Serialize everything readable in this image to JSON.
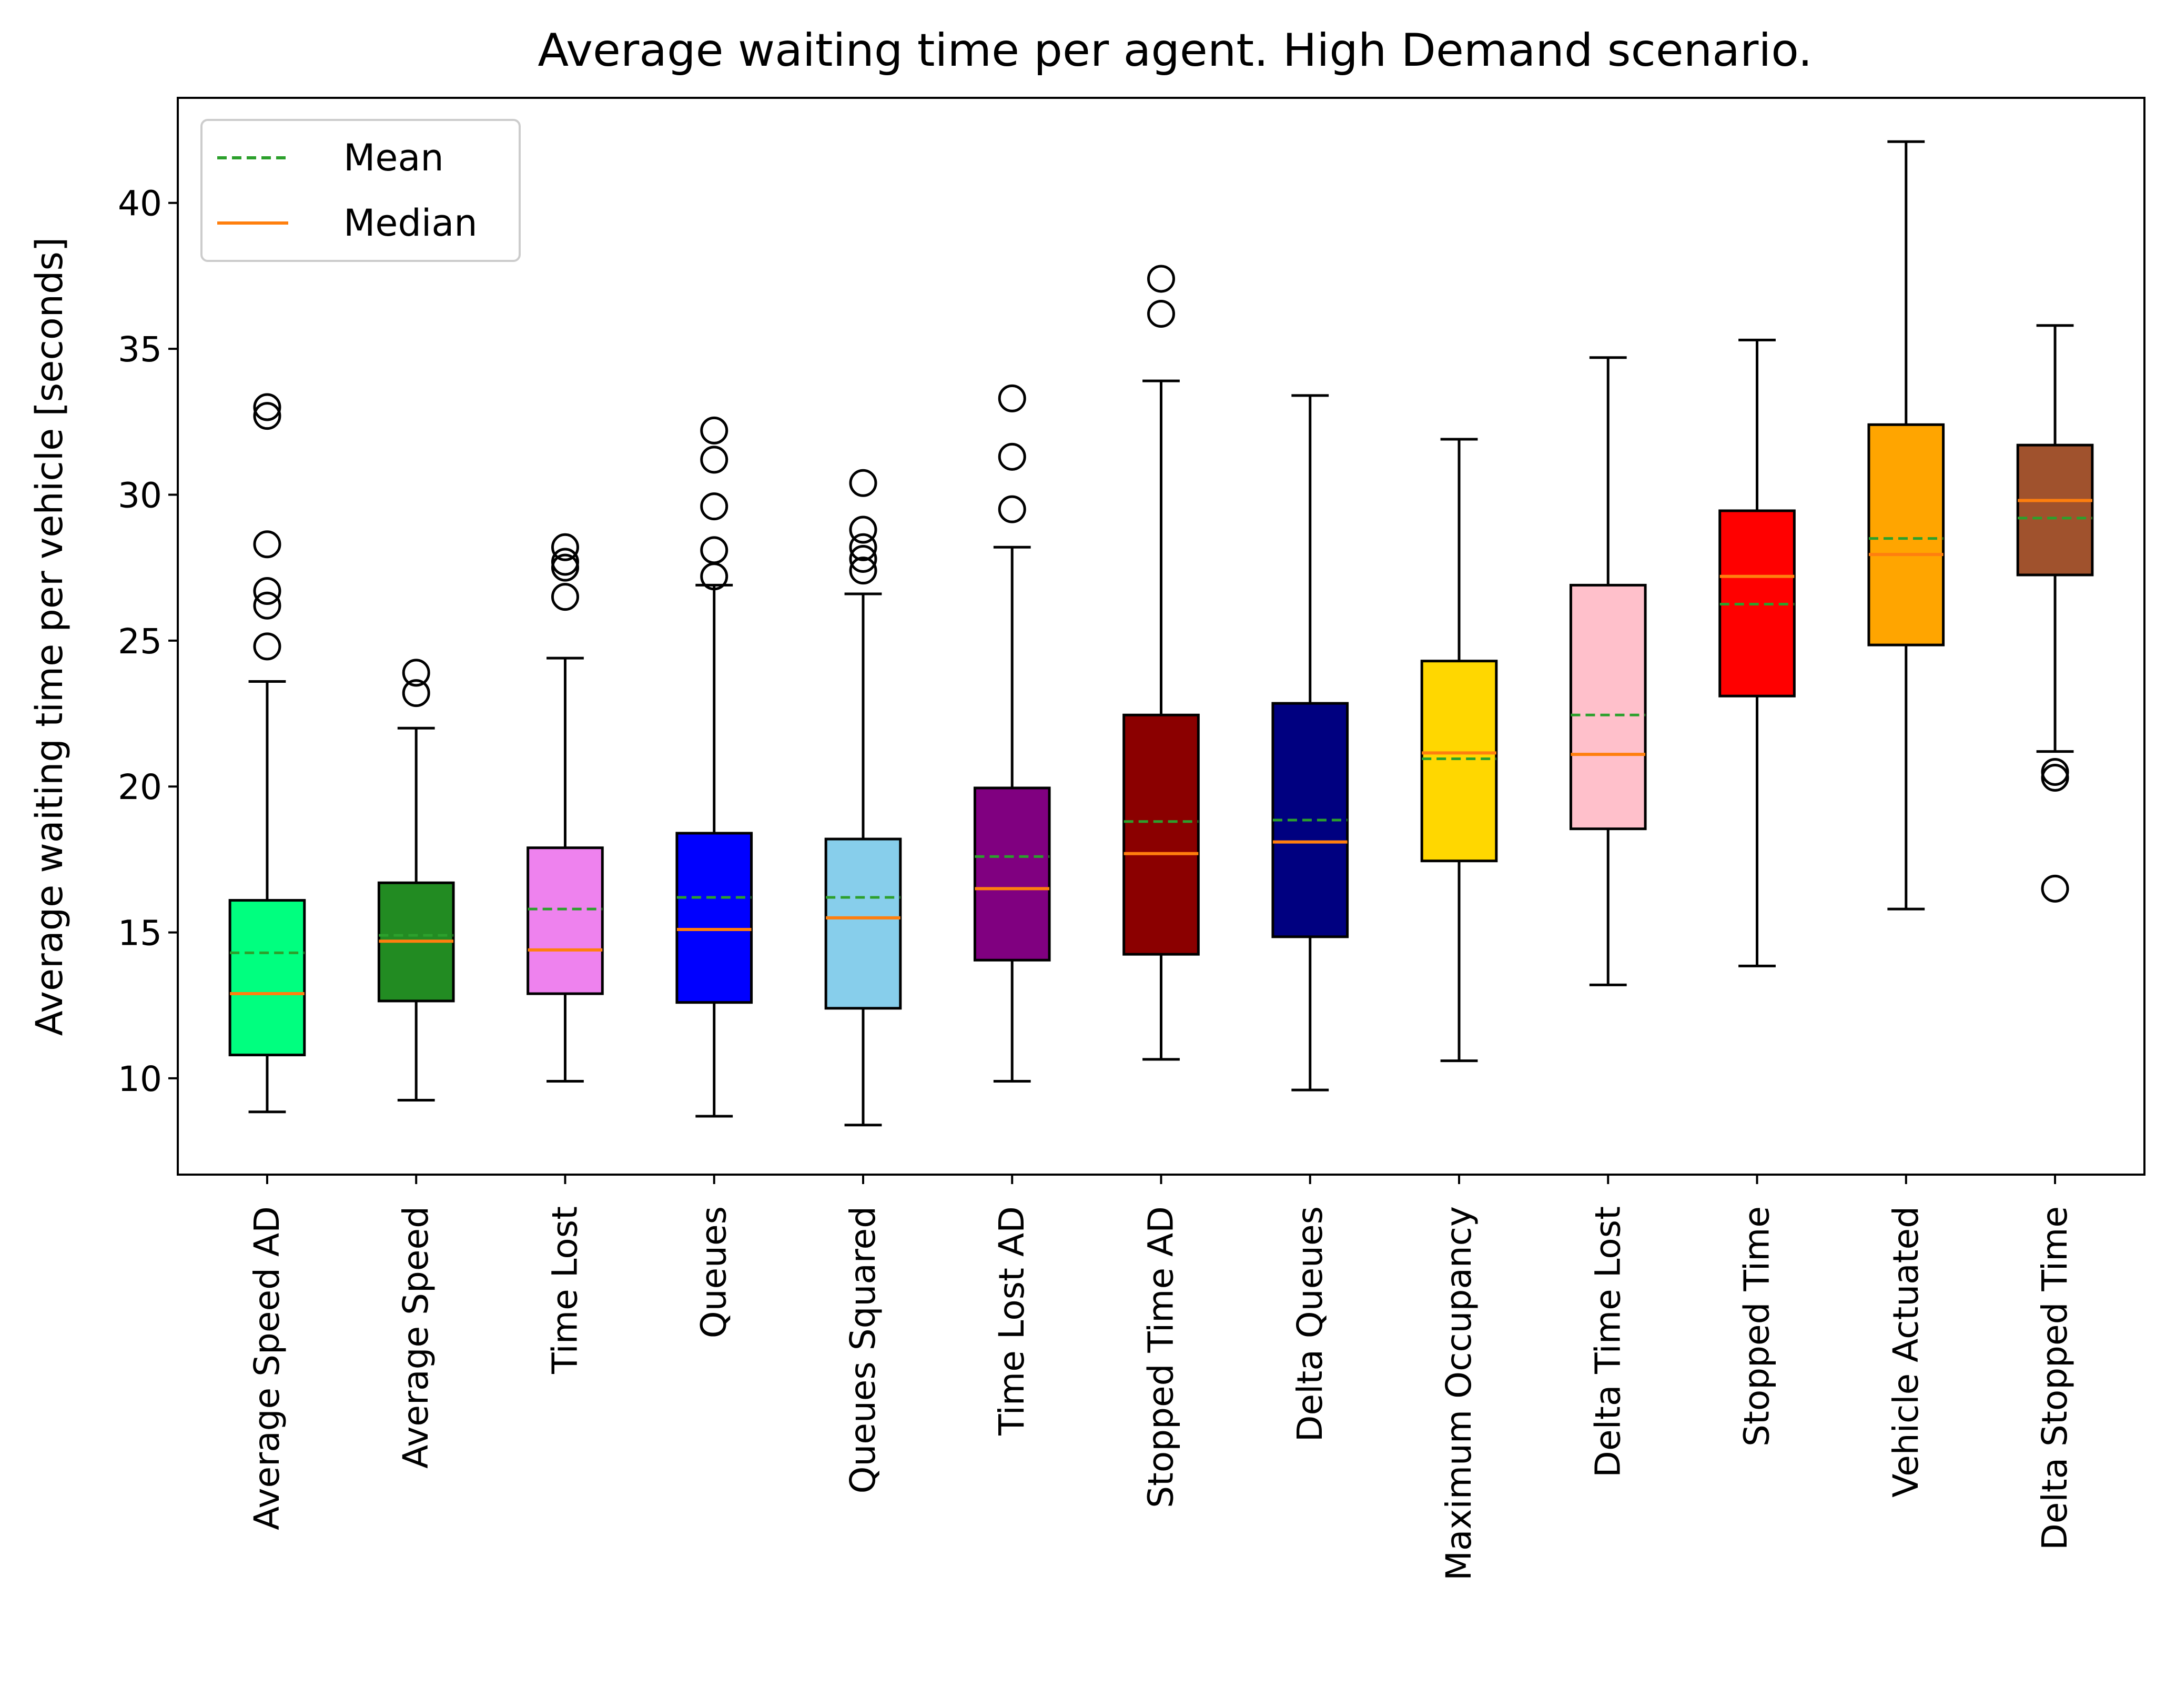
{
  "chart_data": {
    "type": "box",
    "title": "Average waiting time per agent. High Demand scenario.",
    "xlabel": "",
    "ylabel": "Average waiting time per vehicle [seconds]",
    "ylim": [
      6.7,
      43.6
    ],
    "yticks": [
      10,
      15,
      20,
      25,
      30,
      35,
      40
    ],
    "grid": false,
    "legend": {
      "placement": "top-left",
      "entries": [
        {
          "label": "Mean",
          "color": "#2ca02c",
          "style": "dashed"
        },
        {
          "label": "Median",
          "color": "#ff7f0e",
          "style": "solid"
        }
      ]
    },
    "categories": [
      "Average Speed AD",
      "Average Speed",
      "Time Lost",
      "Queues",
      "Queues Squared",
      "Time Lost AD",
      "Stopped Time AD",
      "Delta Queues",
      "Maximum Occupancy",
      "Delta Time Lost",
      "Stopped Time",
      "Vehicle Actuated",
      "Delta Stopped Time"
    ],
    "boxes": [
      {
        "color": "#00ff7f",
        "whisker_low": 8.85,
        "q1": 10.8,
        "median": 12.9,
        "mean": 14.3,
        "q3": 16.1,
        "whisker_high": 23.6,
        "outliers": [
          24.8,
          26.2,
          26.7,
          28.3,
          32.7,
          33.0
        ]
      },
      {
        "color": "#228b22",
        "whisker_low": 9.25,
        "q1": 12.65,
        "median": 14.7,
        "mean": 14.9,
        "q3": 16.7,
        "whisker_high": 22.0,
        "outliers": [
          23.2,
          23.9
        ]
      },
      {
        "color": "#ee82ee",
        "whisker_low": 9.9,
        "q1": 12.9,
        "median": 14.4,
        "mean": 15.8,
        "q3": 17.9,
        "whisker_high": 24.4,
        "outliers": [
          26.5,
          27.5,
          27.7,
          28.2
        ]
      },
      {
        "color": "#0000ff",
        "whisker_low": 8.7,
        "q1": 12.6,
        "median": 15.1,
        "mean": 16.2,
        "q3": 18.4,
        "whisker_high": 26.9,
        "outliers": [
          27.2,
          28.1,
          29.6,
          31.2,
          32.2
        ]
      },
      {
        "color": "#87ceeb",
        "whisker_low": 8.4,
        "q1": 12.4,
        "median": 15.5,
        "mean": 16.2,
        "q3": 18.2,
        "whisker_high": 26.6,
        "outliers": [
          27.4,
          27.8,
          28.2,
          28.8,
          30.4
        ]
      },
      {
        "color": "#800080",
        "whisker_low": 9.9,
        "q1": 14.05,
        "median": 16.5,
        "mean": 17.6,
        "q3": 19.95,
        "whisker_high": 28.2,
        "outliers": [
          29.5,
          31.3,
          33.3
        ]
      },
      {
        "color": "#8b0000",
        "whisker_low": 10.65,
        "q1": 14.25,
        "median": 17.7,
        "mean": 18.8,
        "q3": 22.45,
        "whisker_high": 33.9,
        "outliers": [
          36.2,
          37.4
        ]
      },
      {
        "color": "#000080",
        "whisker_low": 9.6,
        "q1": 14.85,
        "median": 18.1,
        "mean": 18.85,
        "q3": 22.85,
        "whisker_high": 33.4,
        "outliers": []
      },
      {
        "color": "#ffd700",
        "whisker_low": 10.6,
        "q1": 17.45,
        "median": 21.15,
        "mean": 20.95,
        "q3": 24.3,
        "whisker_high": 31.9,
        "outliers": []
      },
      {
        "color": "#ffc0cb",
        "whisker_low": 13.2,
        "q1": 18.55,
        "median": 21.1,
        "mean": 22.45,
        "q3": 26.9,
        "whisker_high": 34.7,
        "outliers": []
      },
      {
        "color": "#ff0000",
        "whisker_low": 13.85,
        "q1": 23.1,
        "median": 27.2,
        "mean": 26.25,
        "q3": 29.45,
        "whisker_high": 35.3,
        "outliers": []
      },
      {
        "color": "#ffa500",
        "whisker_low": 15.8,
        "q1": 24.85,
        "median": 27.95,
        "mean": 28.5,
        "q3": 32.4,
        "whisker_high": 42.1,
        "outliers": []
      },
      {
        "color": "#a0522d",
        "whisker_low": 21.2,
        "q1": 27.25,
        "median": 29.8,
        "mean": 29.2,
        "q3": 31.7,
        "whisker_high": 35.8,
        "outliers": [
          16.5,
          20.3,
          20.5
        ]
      }
    ]
  }
}
